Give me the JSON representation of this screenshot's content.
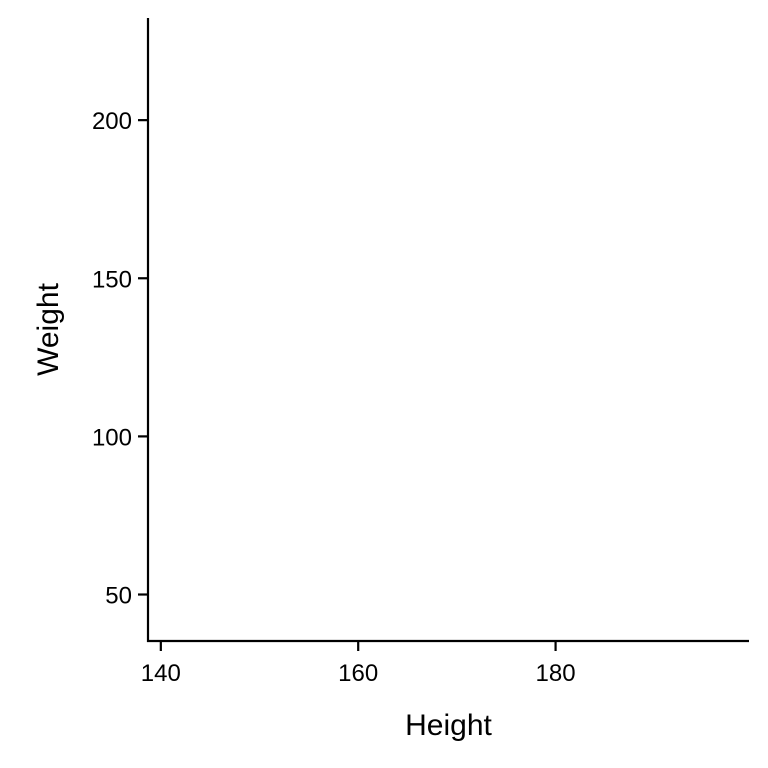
{
  "chart_data": {
    "type": "scatter",
    "title": "",
    "xlabel": "Height",
    "ylabel": "Weight",
    "x": [],
    "y": [],
    "xlim": [
      138.7,
      199.6
    ],
    "ylim": [
      35.3,
      232.3
    ],
    "xticks": [
      140,
      160,
      180
    ],
    "yticks": [
      50,
      100,
      150,
      200
    ],
    "grid": false,
    "legend": "none",
    "colors": {
      "axis": "#000000",
      "text": "#000000",
      "background": "#ffffff"
    }
  }
}
